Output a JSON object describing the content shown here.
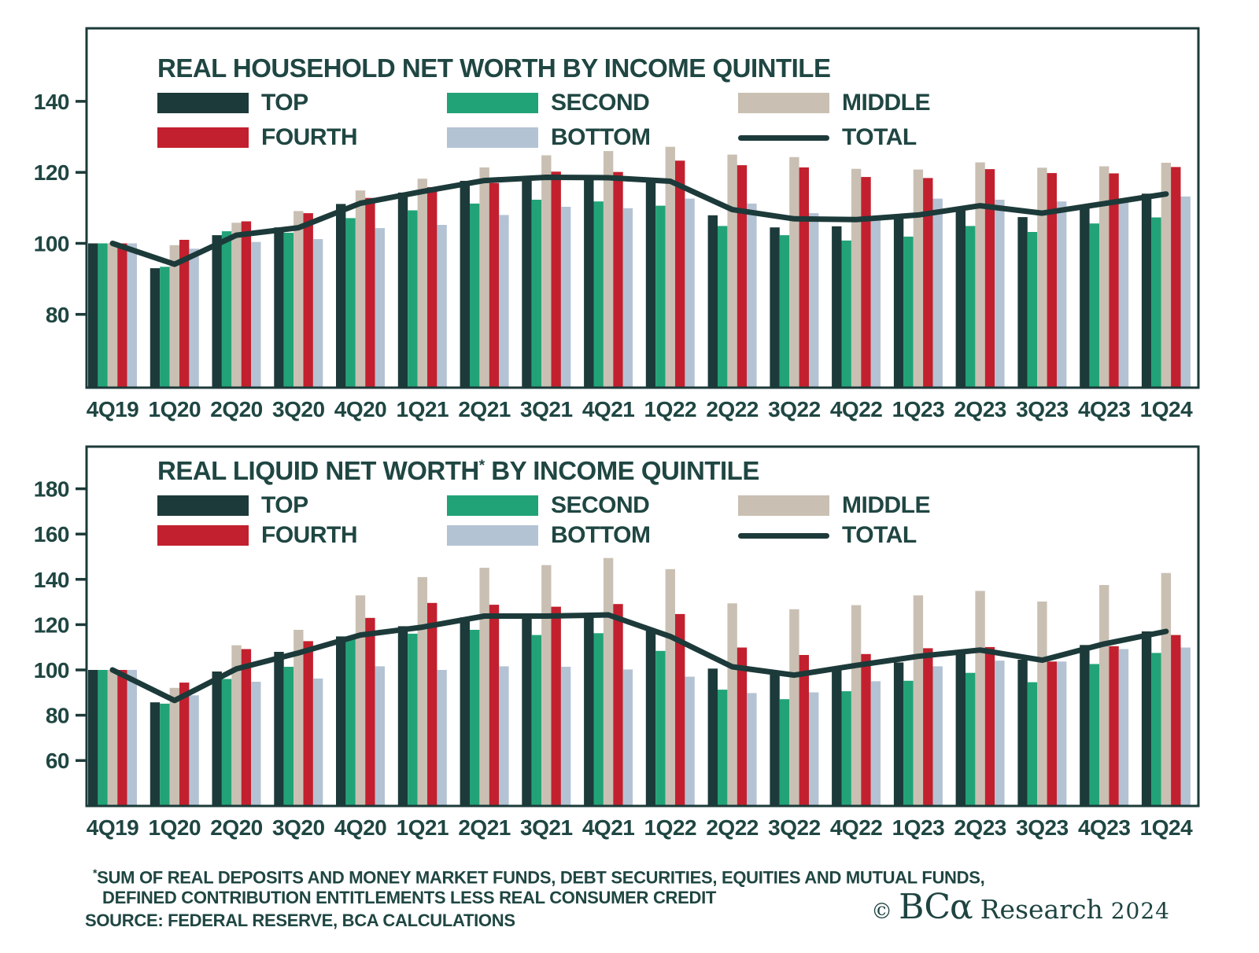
{
  "chart_data": [
    {
      "type": "bar",
      "title": "REAL HOUSEHOLD NET WORTH BY INCOME QUINTILE",
      "categories": [
        "4Q19",
        "1Q20",
        "2Q20",
        "3Q20",
        "4Q20",
        "1Q21",
        "2Q21",
        "3Q21",
        "4Q21",
        "1Q22",
        "2Q22",
        "3Q22",
        "4Q22",
        "1Q23",
        "2Q23",
        "3Q23",
        "4Q23",
        "1Q24"
      ],
      "series": [
        {
          "name": "TOP",
          "color": "#1c3a39",
          "values": [
            100,
            93.0,
            102.3,
            104.5,
            111.1,
            114.3,
            117.6,
            118.3,
            118.3,
            117.6,
            107.9,
            104.5,
            104.8,
            107.0,
            110.0,
            107.4,
            110.6,
            114.0
          ]
        },
        {
          "name": "SECOND",
          "color": "#22a377",
          "values": [
            100,
            93.4,
            103.4,
            103.0,
            107.1,
            109.3,
            111.2,
            112.3,
            111.8,
            110.6,
            104.9,
            102.3,
            100.8,
            101.9,
            104.9,
            103.2,
            105.6,
            107.3
          ]
        },
        {
          "name": "MIDDLE",
          "color": "#c9c0b3",
          "values": [
            100,
            99.5,
            105.8,
            109.1,
            114.9,
            118.2,
            121.4,
            124.8,
            126.0,
            127.2,
            125.0,
            124.3,
            121.0,
            120.8,
            122.8,
            121.3,
            121.7,
            122.7
          ]
        },
        {
          "name": "FOURTH",
          "color": "#c2202e",
          "values": [
            100,
            101.0,
            106.2,
            108.5,
            112.8,
            115.8,
            117.0,
            120.2,
            120.1,
            123.3,
            122.0,
            121.4,
            118.7,
            118.4,
            120.9,
            119.8,
            119.7,
            121.5
          ]
        },
        {
          "name": "BOTTOM",
          "color": "#b4c3d3",
          "values": [
            100,
            98.5,
            100.4,
            101.2,
            104.3,
            105.2,
            108.0,
            110.3,
            109.9,
            112.6,
            111.2,
            108.5,
            107.4,
            112.6,
            112.3,
            111.8,
            111.5,
            113.2
          ]
        }
      ],
      "total_line": {
        "name": "TOTAL",
        "color": "#1c3a39",
        "values": [
          100,
          94.1,
          102.3,
          104.4,
          111.3,
          114.6,
          117.7,
          118.6,
          118.5,
          117.5,
          109.5,
          106.9,
          106.7,
          108.0,
          110.6,
          108.5,
          111.2,
          113.9
        ]
      },
      "yticks": [
        140,
        120,
        100,
        80
      ],
      "ylim": [
        59.5,
        160.8
      ],
      "grid": false,
      "legend_position": "top-left-inside"
    },
    {
      "type": "bar",
      "title": "REAL LIQUID NET WORTH* BY INCOME QUINTILE",
      "categories": [
        "4Q19",
        "1Q20",
        "2Q20",
        "3Q20",
        "4Q20",
        "1Q21",
        "2Q21",
        "3Q21",
        "4Q21",
        "1Q22",
        "2Q22",
        "3Q22",
        "4Q22",
        "1Q23",
        "2Q23",
        "3Q23",
        "4Q23",
        "1Q24"
      ],
      "series": [
        {
          "name": "TOP",
          "color": "#1c3a39",
          "values": [
            100,
            85.7,
            99.3,
            108.0,
            114.8,
            119.3,
            123.2,
            123.5,
            124.5,
            117.7,
            100.6,
            98.0,
            101.2,
            103.3,
            108.2,
            104.5,
            111.0,
            117.0
          ]
        },
        {
          "name": "SECOND",
          "color": "#22a377",
          "values": [
            100,
            85.1,
            96.0,
            101.4,
            113.6,
            116.0,
            117.7,
            115.4,
            116.2,
            108.4,
            91.3,
            87.1,
            90.6,
            95.2,
            98.7,
            94.6,
            102.6,
            107.5
          ]
        },
        {
          "name": "MIDDLE",
          "color": "#c9c0b3",
          "values": [
            100,
            92.1,
            110.9,
            117.7,
            132.9,
            141.0,
            145.1,
            146.3,
            149.4,
            144.5,
            129.4,
            126.8,
            128.6,
            132.9,
            134.9,
            130.2,
            137.5,
            142.8
          ]
        },
        {
          "name": "FOURTH",
          "color": "#c2202e",
          "values": [
            100,
            94.4,
            109.2,
            112.7,
            123.0,
            129.6,
            128.8,
            127.9,
            129.1,
            124.7,
            109.9,
            106.6,
            107.0,
            109.6,
            110.1,
            103.7,
            110.5,
            115.4
          ]
        },
        {
          "name": "BOTTOM",
          "color": "#b4c3d3",
          "values": [
            100,
            88.8,
            94.8,
            96.2,
            101.6,
            100.0,
            101.6,
            101.4,
            100.2,
            97.0,
            89.8,
            90.1,
            95.0,
            101.6,
            104.1,
            103.7,
            109.2,
            109.9
          ]
        }
      ],
      "total_line": {
        "name": "TOTAL",
        "color": "#1c3a39",
        "values": [
          100,
          86.5,
          100.5,
          107.5,
          115.4,
          118.9,
          123.8,
          123.8,
          124.3,
          114.8,
          101.4,
          97.7,
          102.0,
          106.0,
          108.8,
          104.3,
          111.5,
          117.0
        ]
      },
      "yticks": [
        180,
        160,
        140,
        120,
        100,
        80,
        60
      ],
      "ylim": [
        40.0,
        198.6
      ],
      "grid": false,
      "legend_position": "top-left-inside"
    }
  ],
  "footer": {
    "footnote_sup": "*",
    "footnote_line1": "SUM OF REAL DEPOSITS AND MONEY MARKET FUNDS, DEBT SECURITIES, EQUITIES AND MUTUAL FUNDS,",
    "footnote_line2": "DEFINED CONTRIBUTION ENTITLEMENTS LESS REAL CONSUMER CREDIT",
    "source": "SOURCE: FEDERAL RESERVE, BCA CALCULATIONS"
  },
  "logo": {
    "copyright": "©",
    "brand": "BCα",
    "name": "Research",
    "year": "2024"
  },
  "colors": {
    "top": "#1c3a39",
    "second": "#22a377",
    "middle": "#c9c0b3",
    "fourth": "#c2202e",
    "bottom": "#b4c3d3",
    "total_line": "#1c3a39",
    "text": "#1f4642",
    "background": "#ffffff"
  }
}
